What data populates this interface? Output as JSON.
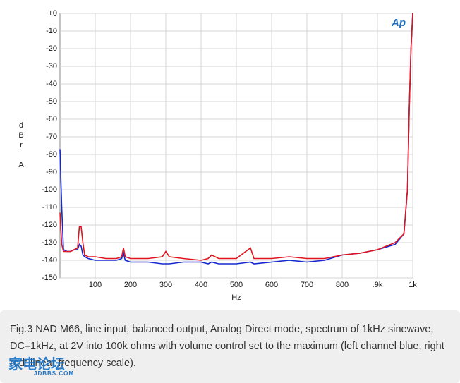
{
  "chart_data": {
    "type": "line",
    "x_label": "Hz",
    "y_label": "dBr A",
    "logo": "Ap",
    "xlim": [
      0,
      1000
    ],
    "xticks": [
      100,
      200,
      300,
      400,
      500,
      600,
      700,
      800,
      {
        "value": 900,
        "label": ".9k"
      },
      {
        "value": 1000,
        "label": "1k"
      }
    ],
    "ylim": [
      -150,
      0
    ],
    "yticks": [
      {
        "value": 0,
        "label": "+0"
      },
      -10,
      -20,
      -30,
      -40,
      -50,
      -60,
      -70,
      -80,
      -90,
      -100,
      -110,
      -120,
      -130,
      -140,
      -150
    ],
    "grid": true,
    "x": [
      0,
      5,
      10,
      20,
      30,
      40,
      50,
      55,
      60,
      65,
      70,
      80,
      100,
      130,
      160,
      175,
      180,
      185,
      200,
      250,
      290,
      300,
      310,
      350,
      400,
      420,
      430,
      450,
      500,
      540,
      550,
      600,
      650,
      700,
      750,
      800,
      850,
      900,
      950,
      975,
      985,
      990,
      995,
      1000
    ],
    "series": [
      {
        "name": "right",
        "color": "#e0141e",
        "values": [
          -113,
          -131,
          -135,
          -135,
          -135,
          -134,
          -133,
          -121,
          -121,
          -130,
          -137,
          -138,
          -138,
          -139,
          -139,
          -138,
          -133,
          -138,
          -139,
          -139,
          -138,
          -135,
          -138,
          -139,
          -140,
          -139,
          -137,
          -139,
          -139,
          -133,
          -139,
          -139,
          -138,
          -139,
          -139,
          -137,
          -136,
          -134,
          -130,
          -125,
          -100,
          -55,
          -20,
          0
        ]
      },
      {
        "name": "left",
        "color": "#1428d0",
        "values": [
          -77,
          -110,
          -134,
          -135,
          -135,
          -134,
          -134,
          -131,
          -132,
          -137,
          -138,
          -139,
          -140,
          -140,
          -140,
          -139,
          -136,
          -140,
          -141,
          -141,
          -142,
          -142,
          -142,
          -141,
          -141,
          -142,
          -141,
          -142,
          -142,
          -141,
          -142,
          -141,
          -140,
          -141,
          -140,
          -137,
          -136,
          -134,
          -131,
          -125,
          -100,
          -55,
          -20,
          0
        ]
      }
    ]
  },
  "caption": "Fig.3 NAD M66, line input, balanced output, Analog Direct mode, spectrum of 1kHz sinewave, DC–1kHz, at 2V into 100k ohms with volume control set to the maximum (left channel blue, right red; linear frequency scale).",
  "watermark": {
    "title": "家电论坛",
    "site": "JDBBS.COM"
  }
}
